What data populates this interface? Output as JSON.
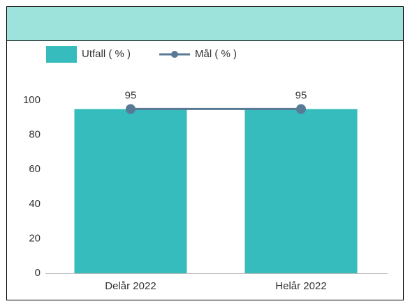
{
  "chart_data": {
    "type": "bar",
    "categories": [
      "Delår 2022",
      "Helår 2022"
    ],
    "series": [
      {
        "name": "Utfall ( % )",
        "type": "bar",
        "color": "#36bcbc",
        "values": [
          95,
          95
        ]
      },
      {
        "name": "Mål ( % )",
        "type": "line",
        "color": "#587a94",
        "values": [
          95,
          95
        ],
        "value_labels": [
          "95",
          "95"
        ]
      }
    ],
    "ylim": [
      0,
      100
    ],
    "yticks": [
      0,
      20,
      40,
      60,
      80,
      100
    ],
    "grid": false,
    "legend": "top-left"
  }
}
